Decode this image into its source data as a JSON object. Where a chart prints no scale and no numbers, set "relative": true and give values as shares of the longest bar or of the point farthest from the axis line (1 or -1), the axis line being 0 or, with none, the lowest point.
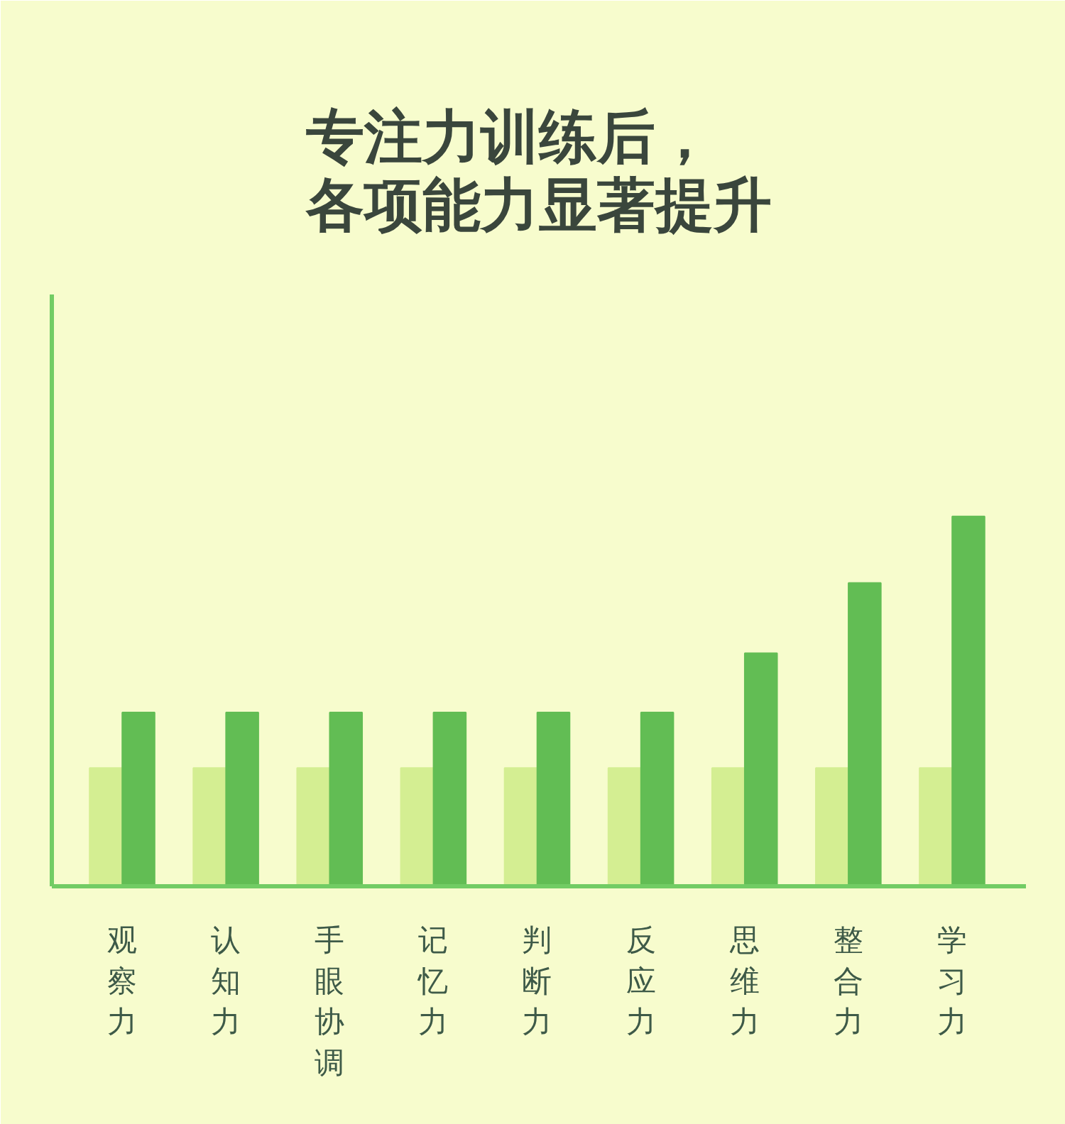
{
  "chart_data": {
    "type": "bar",
    "title": "专注力训练后，各项能力显著提升",
    "categories": [
      "观察力",
      "认知力",
      "手眼协调",
      "记忆力",
      "判断力",
      "反应力",
      "思维力",
      "整合力",
      "学习力"
    ],
    "relative": true,
    "grid": false,
    "series": [
      {
        "color": "#d4ee92",
        "values": [
          0.32,
          0.32,
          0.32,
          0.32,
          0.32,
          0.32,
          0.32,
          0.32,
          0.32
        ]
      },
      {
        "color": "#62bd54",
        "values": [
          0.47,
          0.47,
          0.47,
          0.47,
          0.47,
          0.47,
          0.63,
          0.82,
          1
        ]
      }
    ]
  }
}
